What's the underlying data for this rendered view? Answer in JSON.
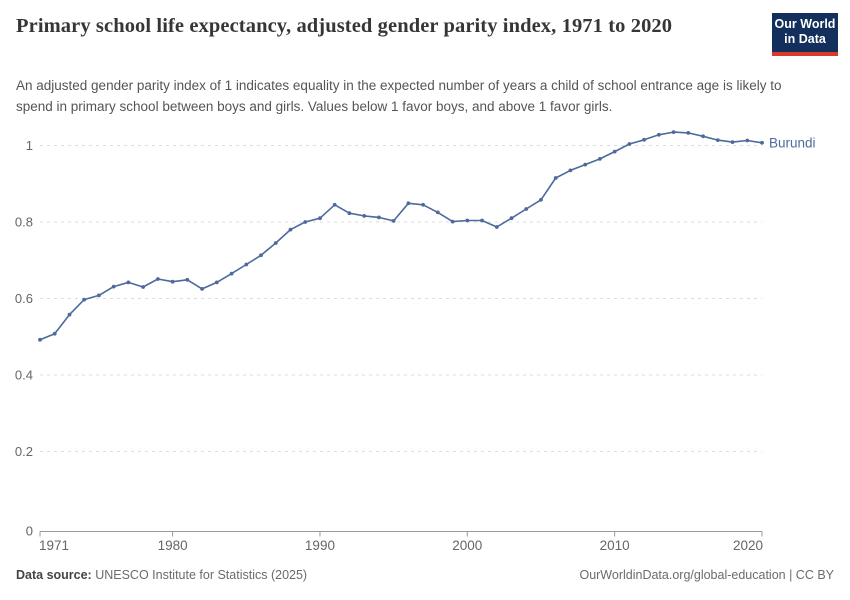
{
  "header": {
    "title": "Primary school life expectancy, adjusted gender parity index, 1971 to 2020",
    "subtitle": "An adjusted gender parity index of 1 indicates equality in the expected number of years a child of school entrance age is likely to spend in primary school between boys and girls. Values below 1 favor boys, and above 1 favor girls.",
    "logo": {
      "line1": "Our World",
      "line2": "in Data",
      "bg_color": "#12305B",
      "accent_color": "#D93A2B"
    }
  },
  "chart_data": {
    "type": "line",
    "title": "Primary school life expectancy, adjusted gender parity index, 1971 to 2020",
    "entity_label": "Burundi",
    "line_color": "#4C6A9C",
    "grid": "horizontal-dashed",
    "legend_position": "end-of-line",
    "xlim": [
      1971,
      2020
    ],
    "ylim": [
      0,
      1.05
    ],
    "xticks": [
      1971,
      1980,
      1990,
      2000,
      2010,
      2020
    ],
    "yticks": [
      0,
      0.2,
      0.4,
      0.6,
      0.8,
      1
    ],
    "ytick_labels": [
      "0",
      "0.2",
      "0.4",
      "0.6",
      "0.8",
      "1"
    ],
    "x": [
      1971,
      1972,
      1973,
      1974,
      1975,
      1976,
      1977,
      1978,
      1979,
      1980,
      1981,
      1982,
      1983,
      1984,
      1985,
      1986,
      1987,
      1988,
      1989,
      1990,
      1991,
      1992,
      1993,
      1994,
      1995,
      1996,
      1997,
      1998,
      1999,
      2000,
      2001,
      2002,
      2003,
      2004,
      2005,
      2006,
      2007,
      2008,
      2009,
      2010,
      2011,
      2012,
      2013,
      2014,
      2015,
      2016,
      2017,
      2018,
      2019,
      2020
    ],
    "series": [
      {
        "name": "Burundi",
        "values": [
          0.492,
          0.508,
          0.558,
          0.597,
          0.608,
          0.631,
          0.642,
          0.63,
          0.651,
          0.644,
          0.649,
          0.625,
          0.642,
          0.665,
          0.689,
          0.713,
          0.745,
          0.78,
          0.8,
          0.81,
          0.845,
          0.823,
          0.816,
          0.812,
          0.803,
          0.849,
          0.845,
          0.825,
          0.801,
          0.804,
          0.804,
          0.787,
          0.81,
          0.834,
          0.858,
          0.915,
          0.935,
          0.95,
          0.965,
          0.984,
          1.004,
          1.015,
          1.028,
          1.035,
          1.033,
          1.024,
          1.014,
          1.009,
          1.013,
          1.007
        ]
      }
    ],
    "colors": {
      "grid": "#dddddd",
      "axis": "#999999",
      "tick_label": "#666666"
    }
  },
  "footer": {
    "source_label": "Data source:",
    "source_text": " UNESCO Institute for Statistics (2025)",
    "link_text": "OurWorldinData.org/global-education | CC BY"
  }
}
